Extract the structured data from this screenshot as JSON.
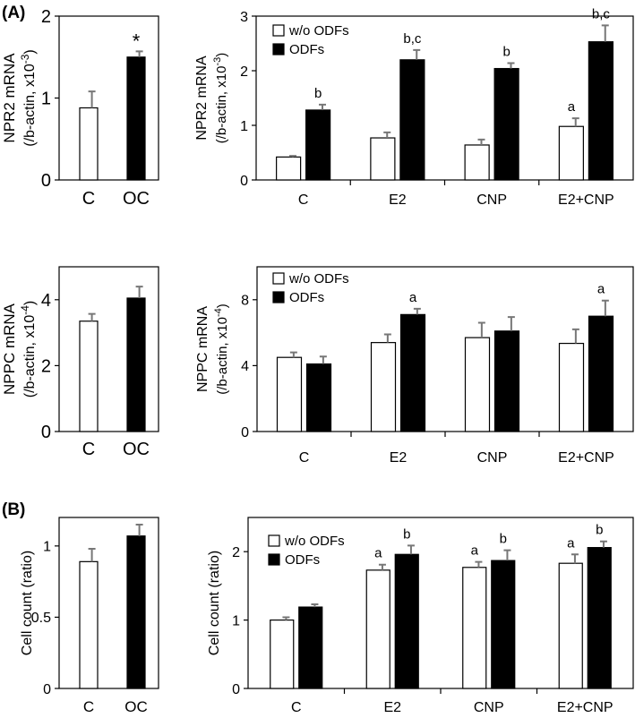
{
  "panel_labels": {
    "a": "(A)",
    "b": "(B)"
  },
  "legend": {
    "open": "w/o ODFs",
    "filled": "ODFs"
  },
  "colors": {
    "open_bar": "#ffffff",
    "filled_bar": "#000000",
    "stroke": "#000000",
    "error_bar": "#777777"
  },
  "chart_data": [
    {
      "id": "npr2-small",
      "type": "bar",
      "title": "",
      "ylabel_line1": "NPR2 mRNA",
      "ylabel_line2": "(/b-actin, x10",
      "ylabel_exp": "-3",
      "ylabel_close": ")",
      "categories": [
        "C",
        "OC"
      ],
      "values": [
        0.88,
        1.5
      ],
      "errors": [
        0.2,
        0.07
      ],
      "styles": [
        "open",
        "filled"
      ],
      "annotations": [
        "",
        "*"
      ],
      "ylim": [
        0,
        2
      ],
      "yticks": [
        0,
        1,
        2
      ],
      "ytick_labels": [
        "0",
        "1",
        "2"
      ]
    },
    {
      "id": "npr2-grouped",
      "type": "bar",
      "title": "",
      "ylabel_line1": "NPR2 mRNA",
      "ylabel_line2": "(/b-actin, x10",
      "ylabel_exp": "-3",
      "ylabel_close": ")",
      "categories": [
        "C",
        "E2",
        "CNP",
        "E2+CNP"
      ],
      "series": [
        {
          "name": "w/o ODFs",
          "values": [
            0.42,
            0.77,
            0.64,
            0.98
          ],
          "errors": [
            0.02,
            0.1,
            0.1,
            0.15
          ],
          "annotations": [
            "",
            "",
            "",
            "a"
          ]
        },
        {
          "name": "ODFs",
          "values": [
            1.28,
            2.2,
            2.04,
            2.53
          ],
          "errors": [
            0.1,
            0.18,
            0.1,
            0.3
          ],
          "annotations": [
            "b",
            "b,c",
            "b",
            "b,c"
          ]
        }
      ],
      "ylim": [
        0,
        3
      ],
      "yticks": [
        0,
        1,
        2,
        3
      ],
      "ytick_labels": [
        "0",
        "1",
        "2",
        "3"
      ]
    },
    {
      "id": "nppc-small",
      "type": "bar",
      "title": "",
      "ylabel_line1": "NPPC mRNA",
      "ylabel_line2": "(/b-actin, x10",
      "ylabel_exp": "-4",
      "ylabel_close": ")",
      "categories": [
        "C",
        "OC"
      ],
      "values": [
        3.35,
        4.05
      ],
      "errors": [
        0.22,
        0.35
      ],
      "styles": [
        "open",
        "filled"
      ],
      "annotations": [
        "",
        ""
      ],
      "ylim": [
        0,
        5
      ],
      "yticks": [
        0,
        2,
        4
      ],
      "ytick_labels": [
        "0",
        "2",
        "4"
      ]
    },
    {
      "id": "nppc-grouped",
      "type": "bar",
      "title": "",
      "ylabel_line1": "NPPC mRNA",
      "ylabel_line2": "(/b-actin, x10",
      "ylabel_exp": "-4",
      "ylabel_close": ")",
      "categories": [
        "C",
        "E2",
        "CNP",
        "E2+CNP"
      ],
      "series": [
        {
          "name": "w/o ODFs",
          "values": [
            4.5,
            5.4,
            5.7,
            5.35
          ],
          "errors": [
            0.3,
            0.5,
            0.9,
            0.85
          ],
          "annotations": [
            "",
            "",
            "",
            ""
          ]
        },
        {
          "name": "ODFs",
          "values": [
            4.1,
            7.1,
            6.1,
            7.0
          ],
          "errors": [
            0.45,
            0.35,
            0.85,
            0.95
          ],
          "annotations": [
            "",
            "a",
            "",
            "a"
          ]
        }
      ],
      "ylim": [
        0,
        10
      ],
      "yticks": [
        0,
        4,
        8
      ],
      "ytick_labels": [
        "0",
        "4",
        "8"
      ]
    },
    {
      "id": "cell-small",
      "type": "bar",
      "title": "",
      "ylabel_line1": "Cell count (ratio)",
      "ylabel_line2": "",
      "ylabel_exp": "",
      "ylabel_close": "",
      "categories": [
        "C",
        "OC"
      ],
      "values": [
        0.89,
        1.07
      ],
      "errors": [
        0.09,
        0.08
      ],
      "styles": [
        "open",
        "filled"
      ],
      "annotations": [
        "",
        ""
      ],
      "ylim": [
        0,
        1.2
      ],
      "yticks": [
        0,
        0.5,
        1
      ],
      "ytick_labels": [
        "0",
        "0.5",
        "1"
      ]
    },
    {
      "id": "cell-grouped",
      "type": "bar",
      "title": "",
      "ylabel_line1": "Cell count (ratio)",
      "ylabel_line2": "",
      "ylabel_exp": "",
      "ylabel_close": "",
      "categories": [
        "C",
        "E2",
        "CNP",
        "E2+CNP"
      ],
      "series": [
        {
          "name": "w/o ODFs",
          "values": [
            1.0,
            1.73,
            1.77,
            1.83
          ],
          "errors": [
            0.04,
            0.08,
            0.08,
            0.13
          ],
          "annotations": [
            "",
            "a",
            "a",
            "a"
          ]
        },
        {
          "name": "ODFs",
          "values": [
            1.19,
            1.96,
            1.87,
            2.06
          ],
          "errors": [
            0.04,
            0.13,
            0.15,
            0.09
          ],
          "annotations": [
            "",
            "b",
            "b",
            "b"
          ]
        }
      ],
      "ylim": [
        0,
        2.5
      ],
      "yticks": [
        0,
        1,
        2
      ],
      "ytick_labels": [
        "0",
        "1",
        "2"
      ]
    }
  ]
}
